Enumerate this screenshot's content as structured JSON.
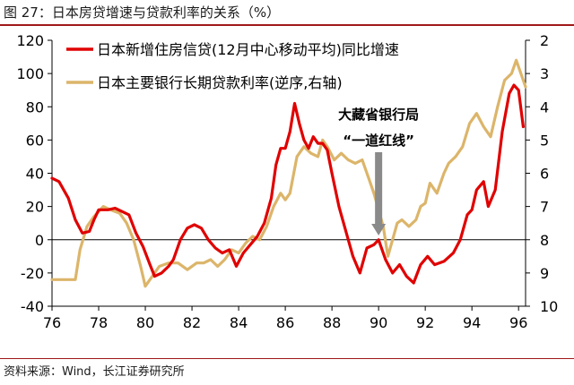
{
  "figure": {
    "title": "图 27：日本房贷增速与贷款利率的关系（%）",
    "source": "资料来源：Wind，长江证券研究所"
  },
  "colors": {
    "series1": "#e00000",
    "series2": "#dcb56a",
    "annotation_arrow": "#8a8a8a",
    "rule": "#a01818"
  },
  "chart_data": {
    "type": "line",
    "x_ticks": [
      "76",
      "78",
      "80",
      "82",
      "84",
      "86",
      "88",
      "90",
      "92",
      "94",
      "96"
    ],
    "x_range": [
      1976,
      1996.3
    ],
    "y_left": {
      "ticks": [
        "120",
        "100",
        "80",
        "60",
        "40",
        "20",
        "0",
        "-20",
        "-40"
      ],
      "range": [
        -40,
        120
      ]
    },
    "y_right": {
      "ticks": [
        "2",
        "3",
        "4",
        "5",
        "6",
        "7",
        "8",
        "9",
        "10"
      ],
      "range": [
        2,
        10
      ],
      "inverted": true
    },
    "legend": {
      "placement": "top-left"
    },
    "annotation": {
      "line1": "大藏省银行局",
      "line2": "“一道红线”",
      "x": 1990
    },
    "series": [
      {
        "name": "日本新增住房信贷(12月中心移动平均)同比增速",
        "axis": "left",
        "points": [
          [
            1976.0,
            37
          ],
          [
            1976.3,
            35
          ],
          [
            1976.7,
            25
          ],
          [
            1977.0,
            12
          ],
          [
            1977.3,
            4
          ],
          [
            1977.6,
            5
          ],
          [
            1977.8,
            12
          ],
          [
            1978.0,
            18
          ],
          [
            1978.4,
            18
          ],
          [
            1978.7,
            19
          ],
          [
            1979.0,
            17
          ],
          [
            1979.3,
            15
          ],
          [
            1979.6,
            4
          ],
          [
            1979.9,
            -4
          ],
          [
            1980.2,
            -15
          ],
          [
            1980.4,
            -22
          ],
          [
            1980.7,
            -20
          ],
          [
            1981.0,
            -16
          ],
          [
            1981.2,
            -12
          ],
          [
            1981.5,
            0
          ],
          [
            1981.8,
            7
          ],
          [
            1982.1,
            9
          ],
          [
            1982.4,
            7
          ],
          [
            1982.7,
            0
          ],
          [
            1983.0,
            -5
          ],
          [
            1983.3,
            -8
          ],
          [
            1983.6,
            -6
          ],
          [
            1983.9,
            -16
          ],
          [
            1984.2,
            -8
          ],
          [
            1984.5,
            -3
          ],
          [
            1984.8,
            2
          ],
          [
            1985.1,
            10
          ],
          [
            1985.4,
            25
          ],
          [
            1985.6,
            45
          ],
          [
            1985.8,
            55
          ],
          [
            1986.0,
            55
          ],
          [
            1986.2,
            65
          ],
          [
            1986.4,
            82
          ],
          [
            1986.6,
            70
          ],
          [
            1986.8,
            60
          ],
          [
            1987.0,
            55
          ],
          [
            1987.2,
            62
          ],
          [
            1987.4,
            58
          ],
          [
            1987.6,
            58
          ],
          [
            1987.8,
            54
          ],
          [
            1988.0,
            40
          ],
          [
            1988.3,
            20
          ],
          [
            1988.6,
            5
          ],
          [
            1988.9,
            -10
          ],
          [
            1989.2,
            -20
          ],
          [
            1989.5,
            -5
          ],
          [
            1989.8,
            -3
          ],
          [
            1990.0,
            0
          ],
          [
            1990.3,
            -12
          ],
          [
            1990.6,
            -20
          ],
          [
            1990.9,
            -15
          ],
          [
            1991.2,
            -22
          ],
          [
            1991.5,
            -26
          ],
          [
            1991.8,
            -15
          ],
          [
            1992.1,
            -10
          ],
          [
            1992.4,
            -15
          ],
          [
            1992.8,
            -13
          ],
          [
            1993.2,
            -8
          ],
          [
            1993.5,
            0
          ],
          [
            1993.8,
            15
          ],
          [
            1994.0,
            18
          ],
          [
            1994.2,
            30
          ],
          [
            1994.5,
            35
          ],
          [
            1994.7,
            20
          ],
          [
            1995.0,
            30
          ],
          [
            1995.3,
            65
          ],
          [
            1995.6,
            88
          ],
          [
            1995.8,
            93
          ],
          [
            1996.0,
            90
          ],
          [
            1996.2,
            68
          ]
        ]
      },
      {
        "name": "日本主要银行长期贷款利率(逆序,右轴)",
        "axis": "right",
        "points": [
          [
            1976.0,
            9.2
          ],
          [
            1976.5,
            9.2
          ],
          [
            1977.0,
            9.2
          ],
          [
            1977.2,
            8.3
          ],
          [
            1977.5,
            7.6
          ],
          [
            1977.8,
            7.3
          ],
          [
            1978.2,
            7.0
          ],
          [
            1978.5,
            7.1
          ],
          [
            1978.9,
            7.2
          ],
          [
            1979.2,
            7.5
          ],
          [
            1979.5,
            8.0
          ],
          [
            1979.8,
            8.8
          ],
          [
            1980.0,
            9.4
          ],
          [
            1980.3,
            9.1
          ],
          [
            1980.6,
            8.8
          ],
          [
            1981.0,
            8.7
          ],
          [
            1981.4,
            8.7
          ],
          [
            1981.8,
            8.9
          ],
          [
            1982.2,
            8.7
          ],
          [
            1982.5,
            8.7
          ],
          [
            1982.8,
            8.6
          ],
          [
            1983.1,
            8.8
          ],
          [
            1983.4,
            8.6
          ],
          [
            1983.7,
            8.3
          ],
          [
            1984.0,
            8.4
          ],
          [
            1984.3,
            8.1
          ],
          [
            1984.6,
            7.9
          ],
          [
            1984.9,
            8.0
          ],
          [
            1985.2,
            7.6
          ],
          [
            1985.5,
            7.0
          ],
          [
            1985.8,
            6.6
          ],
          [
            1986.0,
            6.8
          ],
          [
            1986.2,
            6.6
          ],
          [
            1986.5,
            5.5
          ],
          [
            1986.8,
            5.2
          ],
          [
            1987.1,
            5.4
          ],
          [
            1987.4,
            5.5
          ],
          [
            1987.6,
            5.0
          ],
          [
            1987.8,
            5.2
          ],
          [
            1988.1,
            5.6
          ],
          [
            1988.4,
            5.4
          ],
          [
            1988.7,
            5.6
          ],
          [
            1989.0,
            5.7
          ],
          [
            1989.3,
            5.6
          ],
          [
            1989.6,
            6.2
          ],
          [
            1989.8,
            6.6
          ],
          [
            1990.0,
            7.1
          ],
          [
            1990.2,
            7.6
          ],
          [
            1990.4,
            8.5
          ],
          [
            1990.6,
            8.0
          ],
          [
            1990.8,
            7.5
          ],
          [
            1991.0,
            7.4
          ],
          [
            1991.3,
            7.6
          ],
          [
            1991.6,
            7.4
          ],
          [
            1991.8,
            7.0
          ],
          [
            1992.0,
            6.9
          ],
          [
            1992.2,
            6.3
          ],
          [
            1992.5,
            6.6
          ],
          [
            1992.8,
            6.0
          ],
          [
            1993.0,
            5.7
          ],
          [
            1993.3,
            5.5
          ],
          [
            1993.6,
            5.2
          ],
          [
            1993.9,
            4.5
          ],
          [
            1994.2,
            4.2
          ],
          [
            1994.5,
            4.6
          ],
          [
            1994.8,
            4.9
          ],
          [
            1995.1,
            4.0
          ],
          [
            1995.4,
            3.2
          ],
          [
            1995.7,
            3.0
          ],
          [
            1995.9,
            2.6
          ],
          [
            1996.1,
            3.0
          ],
          [
            1996.3,
            3.4
          ]
        ]
      }
    ]
  }
}
